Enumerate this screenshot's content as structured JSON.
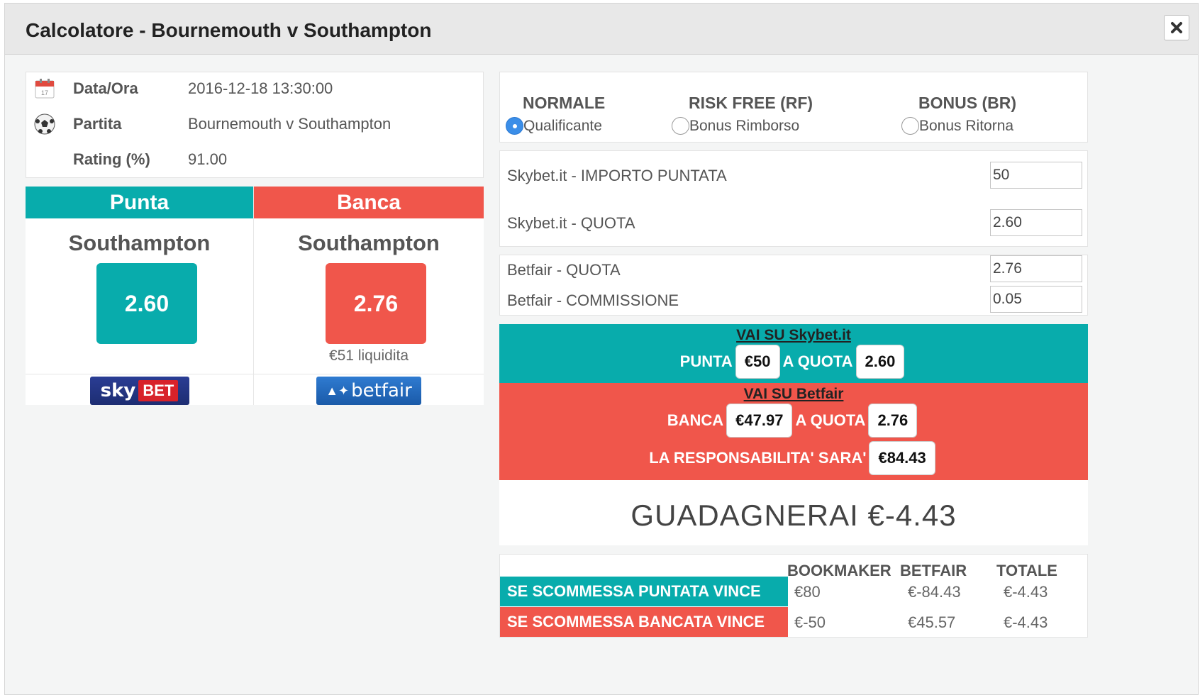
{
  "header": {
    "title": "Calcolatore - Bournemouth v Southampton"
  },
  "colors": {
    "teal": "#08acac",
    "red": "#f0564b"
  },
  "info": {
    "rows": [
      {
        "icon": "calendar-icon",
        "label": "Data/Ora",
        "value": "2016-12-18 13:30:00"
      },
      {
        "icon": "soccer-ball-icon",
        "label": "Partita",
        "value": "Bournemouth v Southampton"
      },
      {
        "icon": "",
        "label": "Rating (%)",
        "value": "91.00"
      }
    ]
  },
  "punta": {
    "heading": "Punta",
    "team": "Southampton",
    "odds": "2.60",
    "bookmaker_logo": "sky BET"
  },
  "banca": {
    "heading": "Banca",
    "team": "Southampton",
    "odds": "2.76",
    "liquidity": "€51 liquidita",
    "exchange_logo": "betfair"
  },
  "mode": {
    "options": [
      {
        "title": "NORMALE",
        "label": "Qualificante",
        "selected": true
      },
      {
        "title": "RISK FREE (RF)",
        "label": "Bonus Rimborso",
        "selected": false
      },
      {
        "title": "BONUS (BR)",
        "label": "Bonus Ritorna",
        "selected": false
      }
    ]
  },
  "bookmaker_form": {
    "stake_label": "Skybet.it - IMPORTO PUNTATA",
    "stake_value": "50",
    "odds_label": "Skybet.it - QUOTA",
    "odds_value": "2.60"
  },
  "exchange_form": {
    "odds_label": "Betfair - QUOTA",
    "odds_value": "2.76",
    "commission_label": "Betfair - COMMISSIONE",
    "commission_value": "0.05"
  },
  "instructions": {
    "bookmaker_link": "VAI SU Skybet.it",
    "punta_label": "PUNTA",
    "punta_amount": "€50",
    "a_quota_1": "A QUOTA",
    "punta_odds": "2.60",
    "exchange_link": "VAI SU Betfair",
    "banca_label": "BANCA",
    "banca_amount": "€47.97",
    "a_quota_2": "A QUOTA",
    "banca_odds": "2.76",
    "liability_label": "LA RESPONSABILITA' SARA'",
    "liability_amount": "€84.43"
  },
  "result": {
    "profit_text": "GUADAGNERAI €-4.43"
  },
  "summary": {
    "headers": [
      "BOOKMAKER",
      "BETFAIR",
      "TOTALE"
    ],
    "rows": [
      {
        "label": "SE SCOMMESSA PUNTATA VINCE",
        "bookmaker": "€80",
        "betfair": "€-84.43",
        "totale": "€-4.43"
      },
      {
        "label": "SE SCOMMESSA BANCATA VINCE",
        "bookmaker": "€-50",
        "betfair": "€45.57",
        "totale": "€-4.43"
      }
    ]
  }
}
